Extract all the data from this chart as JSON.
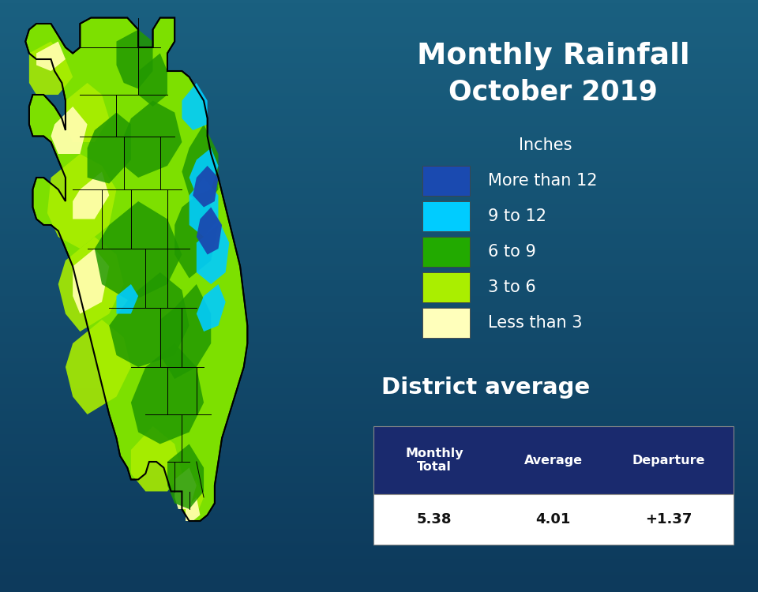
{
  "title_line1": "Monthly Rainfall",
  "title_line2": "October 2019",
  "title_color": "#FFFFFF",
  "bg_color_top": "#0d3a5c",
  "bg_color_bottom": "#1a6080",
  "legend_header": "Inches",
  "legend_items": [
    {
      "label": "More than 12",
      "color": "#1a4ab0"
    },
    {
      "label": "9 to 12",
      "color": "#00ccff"
    },
    {
      "label": "6 to 9",
      "color": "#22aa00"
    },
    {
      "label": "3 to 6",
      "color": "#aaee00"
    },
    {
      "label": "Less than 3",
      "color": "#ffffbb"
    }
  ],
  "district_avg_label": "District average",
  "table_header_color": "#1a2a6e",
  "table_bg_color": "#ffffff",
  "table_headers": [
    "Monthly\nTotal",
    "Average",
    "Departure"
  ],
  "table_values": [
    "5.38",
    "4.01",
    "+1.37"
  ],
  "map_bg": "#0d3a5c",
  "base_green": "#7de000",
  "dark_green": "#229900",
  "light_green": "#aaee00",
  "cream": "#ffffaa",
  "cyan": "#00ccff",
  "dark_blue": "#1a4ab0"
}
